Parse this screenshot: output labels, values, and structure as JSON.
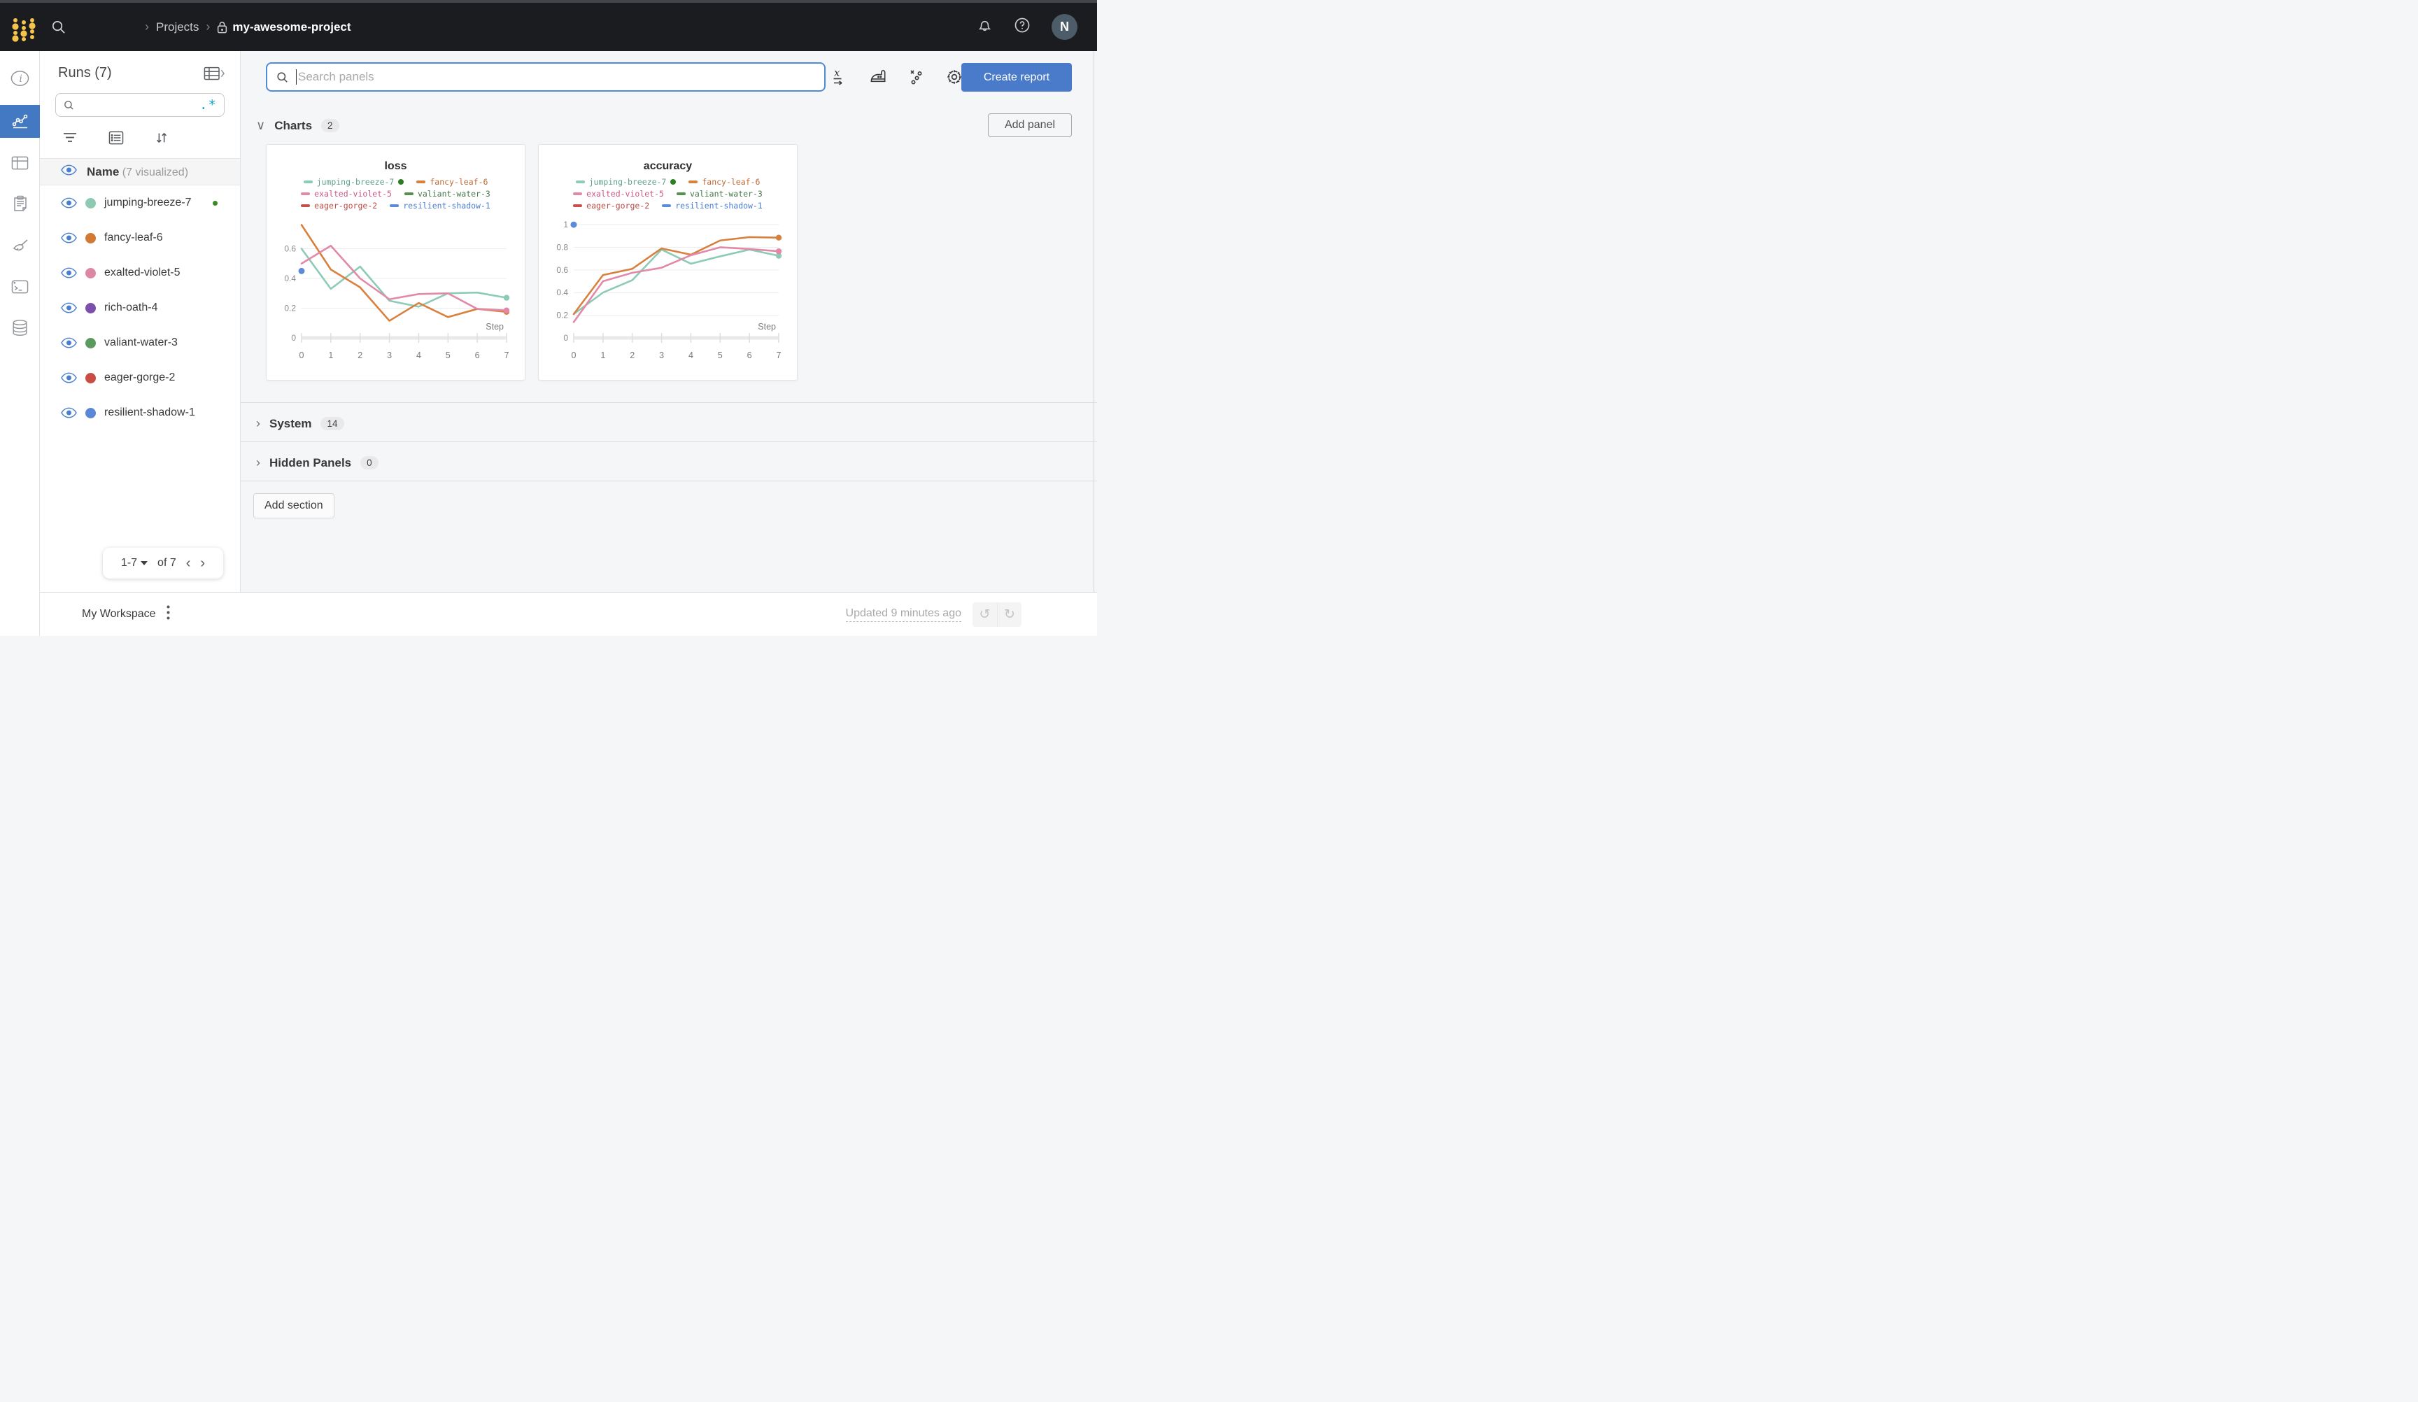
{
  "topbar": {
    "breadcrumb": {
      "sep": "›",
      "projects": "Projects",
      "project": "my-awesome-project"
    },
    "avatar_initial": "N"
  },
  "runs_panel": {
    "title": "Runs (7)",
    "search_regex_toggle": ".*",
    "name_header": "Name",
    "visualized": "(7 visualized)",
    "runs": [
      {
        "name": "jumping-breeze-7",
        "color": "#8ec9b1",
        "running": true
      },
      {
        "name": "fancy-leaf-6",
        "color": "#d07a35",
        "running": false
      },
      {
        "name": "exalted-violet-5",
        "color": "#de86a5",
        "running": false
      },
      {
        "name": "rich-oath-4",
        "color": "#7c4fad",
        "running": false
      },
      {
        "name": "valiant-water-3",
        "color": "#5b9a5e",
        "running": false
      },
      {
        "name": "eager-gorge-2",
        "color": "#c94c45",
        "running": false
      },
      {
        "name": "resilient-shadow-1",
        "color": "#5b87d7",
        "running": false
      }
    ],
    "pagination": {
      "range": "1-7",
      "of": "of 7",
      "prev": "‹",
      "next": "›"
    }
  },
  "main": {
    "panel_search_placeholder": "Search panels",
    "create_report_label": "Create report",
    "add_panel_label": "Add panel",
    "sections": {
      "charts": {
        "label": "Charts",
        "count": "2",
        "chevron": "∨"
      },
      "system": {
        "label": "System",
        "count": "14",
        "chevron": "›"
      },
      "hidden": {
        "label": "Hidden Panels",
        "count": "0",
        "chevron": "›"
      }
    },
    "add_section_label": "Add section"
  },
  "footer": {
    "workspace": "My Workspace",
    "updated": "Updated 9 minutes ago",
    "undo": "↺",
    "redo": "↻"
  },
  "chart_data": [
    {
      "type": "line",
      "title": "loss",
      "xlabel": "Step",
      "x": [
        0,
        1,
        2,
        3,
        4,
        5,
        6,
        7
      ],
      "ylim": [
        0,
        0.8
      ],
      "yticks": [
        0,
        0.2,
        0.4,
        0.6
      ],
      "grid": true,
      "legend_position": "top",
      "series": [
        {
          "name": "jumping-breeze-7",
          "color": "#8ccbb5",
          "text_color": "#5fa28b",
          "running": true,
          "values": [
            0.6,
            0.33,
            0.48,
            0.25,
            0.21,
            0.3,
            0.305,
            0.27
          ],
          "end_marker": true
        },
        {
          "name": "fancy-leaf-6",
          "color": "#d8813e",
          "text_color": "#c06a34",
          "running": false,
          "values": [
            0.76,
            0.46,
            0.34,
            0.115,
            0.235,
            0.14,
            0.195,
            0.175
          ],
          "end_marker": true
        },
        {
          "name": "exalted-violet-5",
          "color": "#e289aa",
          "text_color": "#ce5585",
          "running": false,
          "values": [
            0.5,
            0.62,
            0.4,
            0.26,
            0.295,
            0.3,
            0.195,
            0.185
          ],
          "end_marker": true
        },
        {
          "name": "valiant-water-3",
          "color": "#55904f",
          "text_color": "#47784a",
          "running": false,
          "values": []
        },
        {
          "name": "eager-gorge-2",
          "color": "#c8504a",
          "text_color": "#bc4a44",
          "running": false,
          "values": []
        },
        {
          "name": "resilient-shadow-1",
          "color": "#5b8bd9",
          "text_color": "#4a7bd0",
          "running": false,
          "values": [],
          "points": [
            [
              0,
              0.45
            ]
          ]
        }
      ]
    },
    {
      "type": "line",
      "title": "accuracy",
      "xlabel": "Step",
      "x": [
        0,
        1,
        2,
        3,
        4,
        5,
        6,
        7
      ],
      "ylim": [
        0,
        1.05
      ],
      "yticks": [
        0,
        0.2,
        0.4,
        0.6,
        0.8,
        1
      ],
      "grid": true,
      "legend_position": "top",
      "series": [
        {
          "name": "jumping-breeze-7",
          "color": "#8ccbb5",
          "text_color": "#5fa28b",
          "running": true,
          "values": [
            0.21,
            0.4,
            0.51,
            0.78,
            0.655,
            0.72,
            0.78,
            0.725
          ],
          "end_marker": true
        },
        {
          "name": "fancy-leaf-6",
          "color": "#d8813e",
          "text_color": "#c06a34",
          "running": false,
          "values": [
            0.21,
            0.555,
            0.61,
            0.79,
            0.735,
            0.86,
            0.89,
            0.885
          ],
          "end_marker": true
        },
        {
          "name": "exalted-violet-5",
          "color": "#e289aa",
          "text_color": "#ce5585",
          "running": false,
          "values": [
            0.14,
            0.5,
            0.575,
            0.62,
            0.73,
            0.8,
            0.785,
            0.765
          ],
          "end_marker": true
        },
        {
          "name": "valiant-water-3",
          "color": "#55904f",
          "text_color": "#47784a",
          "running": false,
          "values": []
        },
        {
          "name": "eager-gorge-2",
          "color": "#c8504a",
          "text_color": "#bc4a44",
          "running": false,
          "values": []
        },
        {
          "name": "resilient-shadow-1",
          "color": "#5b8bd9",
          "text_color": "#4a7bd0",
          "running": false,
          "values": [],
          "points": [
            [
              0,
              1.0
            ]
          ]
        }
      ]
    }
  ]
}
